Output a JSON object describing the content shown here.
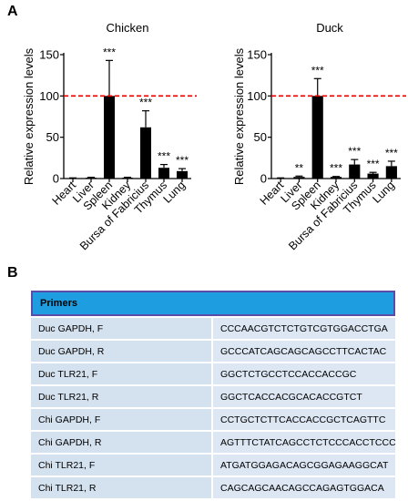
{
  "panels": {
    "a": "A",
    "b": "B"
  },
  "chart_data": [
    {
      "type": "bar",
      "title": "Chicken",
      "ylabel": "Relative expression levels",
      "xlabel": "",
      "categories": [
        "Heart",
        "Liver",
        "Spleen",
        "Kidney",
        "Bursa of Fabricius",
        "Thymus",
        "Lung"
      ],
      "values": [
        0.5,
        1,
        100,
        1,
        62,
        13,
        9
      ],
      "errors": [
        0.3,
        0.5,
        43,
        0.5,
        20,
        4,
        3
      ],
      "significance": [
        "",
        "",
        "***",
        "",
        "***",
        "***",
        "***"
      ],
      "reference_line": 100,
      "reference_line_color": "#e00000",
      "ylim": [
        0,
        150
      ],
      "yticks": [
        "0",
        "50",
        "100",
        "150"
      ],
      "bar_color": "#000000"
    },
    {
      "type": "bar",
      "title": "Duck",
      "ylabel": "Relative expression levels",
      "xlabel": "",
      "categories": [
        "Heart",
        "Liver",
        "Spleen",
        "Kidney",
        "Bursa of Fabricius",
        "Thymus",
        "Lung"
      ],
      "values": [
        0.5,
        2,
        100,
        2,
        17,
        6,
        15
      ],
      "errors": [
        0.3,
        1,
        21,
        0.5,
        6,
        1.5,
        6
      ],
      "significance": [
        "",
        "**",
        "***",
        "***",
        "***",
        "***",
        "***"
      ],
      "reference_line": 100,
      "reference_line_color": "#e00000",
      "ylim": [
        0,
        150
      ],
      "yticks": [
        "0",
        "50",
        "100",
        "150"
      ],
      "bar_color": "#000000"
    }
  ],
  "primers_table": {
    "header": "Primers",
    "rows": [
      {
        "name": "Duc GAPDH, F",
        "sequence": "CCCAACGTCTCTGTCGTGGACCTGA"
      },
      {
        "name": "Duc GAPDH, R",
        "sequence": "GCCCATCAGCAGCAGCCTTCACTAC"
      },
      {
        "name": "Duc TLR21,  F",
        "sequence": "GGCTCTGCCTCCACCACCGC"
      },
      {
        "name": "Duc TLR21,  R",
        "sequence": "GGCTCACCACGCACACCGTCT"
      },
      {
        "name": "Chi GAPDH, F",
        "sequence": "CCTGCTCTTCACCACCGCTCAGTTC"
      },
      {
        "name": "Chi GAPDH, R",
        "sequence": "AGTTTCTATCAGCCTCTCCCACCTCCC"
      },
      {
        "name": "Chi TLR21, F",
        "sequence": "ATGATGGAGACAGCGGAGAAGGCAT"
      },
      {
        "name": "Chi TLR21, R",
        "sequence": "CAGCAGCAACAGCCAGAGTGGACA"
      }
    ]
  }
}
